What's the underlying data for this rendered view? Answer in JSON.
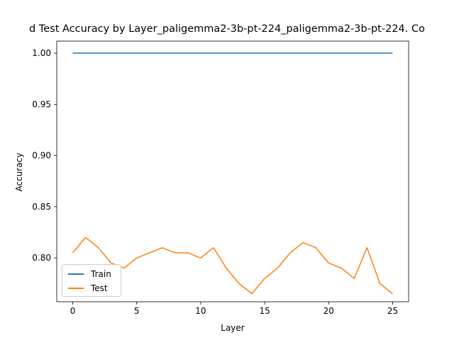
{
  "chart_data": {
    "type": "line",
    "title": "d Test Accuracy by Layer_paligemma2-3b-pt-224_paligemma2-3b-pt-224. Co",
    "xlabel": "Layer",
    "ylabel": "Accuracy",
    "xlim": [
      -1.25,
      26.25
    ],
    "ylim": [
      0.7572,
      1.0118
    ],
    "x_ticks": [
      0,
      5,
      10,
      15,
      20,
      25
    ],
    "y_ticks": [
      0.8,
      0.85,
      0.9,
      0.95,
      1.0
    ],
    "y_tick_labels": [
      "0.80",
      "0.85",
      "0.90",
      "0.95",
      "1.00"
    ],
    "grid": false,
    "legend_position": "lower-left",
    "x": [
      0,
      1,
      2,
      3,
      4,
      5,
      6,
      7,
      8,
      9,
      10,
      11,
      12,
      13,
      14,
      15,
      16,
      17,
      18,
      19,
      20,
      21,
      22,
      23,
      24,
      25
    ],
    "series": [
      {
        "name": "Train",
        "color": "#1f77b4",
        "values": [
          1,
          1,
          1,
          1,
          1,
          1,
          1,
          1,
          1,
          1,
          1,
          1,
          1,
          1,
          1,
          1,
          1,
          1,
          1,
          1,
          1,
          1,
          1,
          1,
          1,
          1
        ]
      },
      {
        "name": "Test",
        "color": "#ff7f0e",
        "values": [
          0.805,
          0.82,
          0.81,
          0.795,
          0.79,
          0.8,
          0.805,
          0.81,
          0.805,
          0.805,
          0.8,
          0.81,
          0.79,
          0.775,
          0.765,
          0.78,
          0.79,
          0.805,
          0.815,
          0.81,
          0.795,
          0.79,
          0.78,
          0.81,
          0.775,
          0.765
        ]
      }
    ]
  }
}
